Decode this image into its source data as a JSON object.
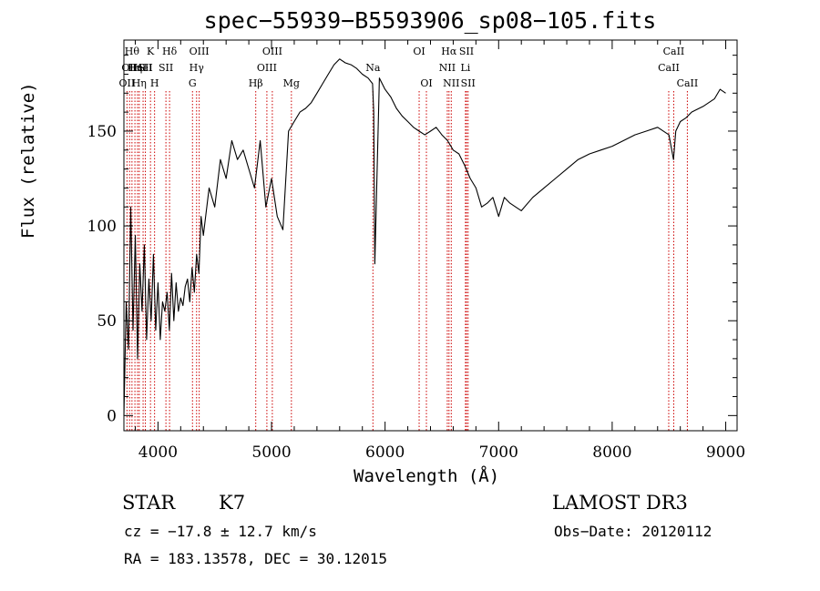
{
  "title": "spec−55939−B5593906_sp08−105.fits",
  "footer": {
    "object_class": "STAR",
    "subclass": "K7",
    "survey": "LAMOST DR3",
    "redshift": "cz = −17.8 ± 12.7 km/s",
    "obs_date": "Obs−Date: 20120112",
    "coords": "RA = 183.13578, DEC =  30.12015"
  },
  "chart_data": {
    "type": "line",
    "title": "spec−55939−B5593906_sp08−105.fits",
    "xlabel": "Wavelength (Å)",
    "ylabel": "Flux (relative)",
    "xlim": [
      3700,
      9100
    ],
    "ylim": [
      -8,
      198
    ],
    "x_ticks": [
      4000,
      5000,
      6000,
      7000,
      8000,
      9000
    ],
    "y_ticks": [
      0,
      50,
      100,
      150
    ],
    "grid": false,
    "line_color": "#000000",
    "marker_color": "#cc0000",
    "series": [
      {
        "x": [
          3700,
          3720,
          3740,
          3760,
          3780,
          3800,
          3820,
          3840,
          3860,
          3880,
          3900,
          3920,
          3940,
          3960,
          3980,
          4000,
          4020,
          4040,
          4060,
          4080,
          4100,
          4120,
          4140,
          4160,
          4180,
          4200,
          4220,
          4240,
          4260,
          4280,
          4300,
          4320,
          4340,
          4360,
          4380,
          4400,
          4450,
          4500,
          4550,
          4600,
          4650,
          4700,
          4750,
          4800,
          4850,
          4900,
          4950,
          5000,
          5050,
          5100,
          5150,
          5200,
          5250,
          5300,
          5350,
          5400,
          5450,
          5500,
          5550,
          5600,
          5650,
          5700,
          5750,
          5800,
          5850,
          5890,
          5900,
          5910,
          5950,
          6000,
          6050,
          6100,
          6150,
          6200,
          6250,
          6300,
          6350,
          6400,
          6450,
          6500,
          6550,
          6600,
          6650,
          6700,
          6750,
          6800,
          6850,
          6900,
          6950,
          7000,
          7050,
          7100,
          7150,
          7200,
          7300,
          7400,
          7500,
          7600,
          7700,
          7800,
          7900,
          8000,
          8100,
          8200,
          8300,
          8400,
          8500,
          8540,
          8560,
          8600,
          8650,
          8700,
          8800,
          8900,
          8950,
          9000
        ],
        "y": [
          0,
          60,
          35,
          110,
          45,
          95,
          30,
          80,
          55,
          90,
          40,
          72,
          50,
          85,
          45,
          70,
          40,
          60,
          55,
          65,
          45,
          75,
          50,
          70,
          55,
          62,
          58,
          68,
          72,
          60,
          78,
          65,
          85,
          75,
          105,
          95,
          120,
          110,
          135,
          125,
          145,
          135,
          140,
          130,
          120,
          145,
          110,
          125,
          105,
          98,
          150,
          155,
          160,
          162,
          165,
          170,
          175,
          180,
          185,
          188,
          186,
          185,
          183,
          180,
          178,
          175,
          160,
          80,
          178,
          172,
          168,
          162,
          158,
          155,
          152,
          150,
          148,
          150,
          152,
          148,
          145,
          140,
          138,
          132,
          125,
          120,
          110,
          112,
          115,
          105,
          115,
          112,
          110,
          108,
          115,
          120,
          125,
          130,
          135,
          138,
          140,
          142,
          145,
          148,
          150,
          152,
          148,
          135,
          150,
          155,
          157,
          160,
          163,
          167,
          172,
          170
        ]
      }
    ],
    "line_markers": [
      {
        "wavelength": 3727,
        "row": 2,
        "label": "OII"
      },
      {
        "wavelength": 3750,
        "row": 1,
        "label": "OII"
      },
      {
        "wavelength": 3771,
        "row": 0,
        "label": "Hθ"
      },
      {
        "wavelength": 3797,
        "row": 1,
        "label": "Hη"
      },
      {
        "wavelength": 3820,
        "row": 1,
        "label": "HeI"
      },
      {
        "wavelength": 3835,
        "row": 2,
        "label": "Hη"
      },
      {
        "wavelength": 3869,
        "row": 1,
        "label": "HeI"
      },
      {
        "wavelength": 3889,
        "row": 1,
        "label": "SII"
      },
      {
        "wavelength": 3934,
        "row": 0,
        "label": "K"
      },
      {
        "wavelength": 3970,
        "row": 2,
        "label": "H"
      },
      {
        "wavelength": 4070,
        "row": 1,
        "label": "SII"
      },
      {
        "wavelength": 4102,
        "row": 0,
        "label": "Hδ"
      },
      {
        "wavelength": 4304,
        "row": 2,
        "label": "G"
      },
      {
        "wavelength": 4340,
        "row": 1,
        "label": "Hγ"
      },
      {
        "wavelength": 4363,
        "row": 0,
        "label": "OIII"
      },
      {
        "wavelength": 4861,
        "row": 2,
        "label": "Hβ"
      },
      {
        "wavelength": 4959,
        "row": 1,
        "label": "OIII"
      },
      {
        "wavelength": 5007,
        "row": 0,
        "label": "OIII"
      },
      {
        "wavelength": 5175,
        "row": 2,
        "label": "Mg"
      },
      {
        "wavelength": 5893,
        "row": 1,
        "label": "Na"
      },
      {
        "wavelength": 6300,
        "row": 0,
        "label": "OI"
      },
      {
        "wavelength": 6364,
        "row": 2,
        "label": "OI"
      },
      {
        "wavelength": 6548,
        "row": 1,
        "label": "NII"
      },
      {
        "wavelength": 6563,
        "row": 0,
        "label": "Hα"
      },
      {
        "wavelength": 6583,
        "row": 2,
        "label": "NII"
      },
      {
        "wavelength": 6708,
        "row": 1,
        "label": "Li"
      },
      {
        "wavelength": 6717,
        "row": 0,
        "label": "SII"
      },
      {
        "wavelength": 6731,
        "row": 2,
        "label": "SII"
      },
      {
        "wavelength": 8498,
        "row": 1,
        "label": "CaII"
      },
      {
        "wavelength": 8542,
        "row": 0,
        "label": "CaII"
      },
      {
        "wavelength": 8662,
        "row": 2,
        "label": "CaII"
      }
    ]
  }
}
